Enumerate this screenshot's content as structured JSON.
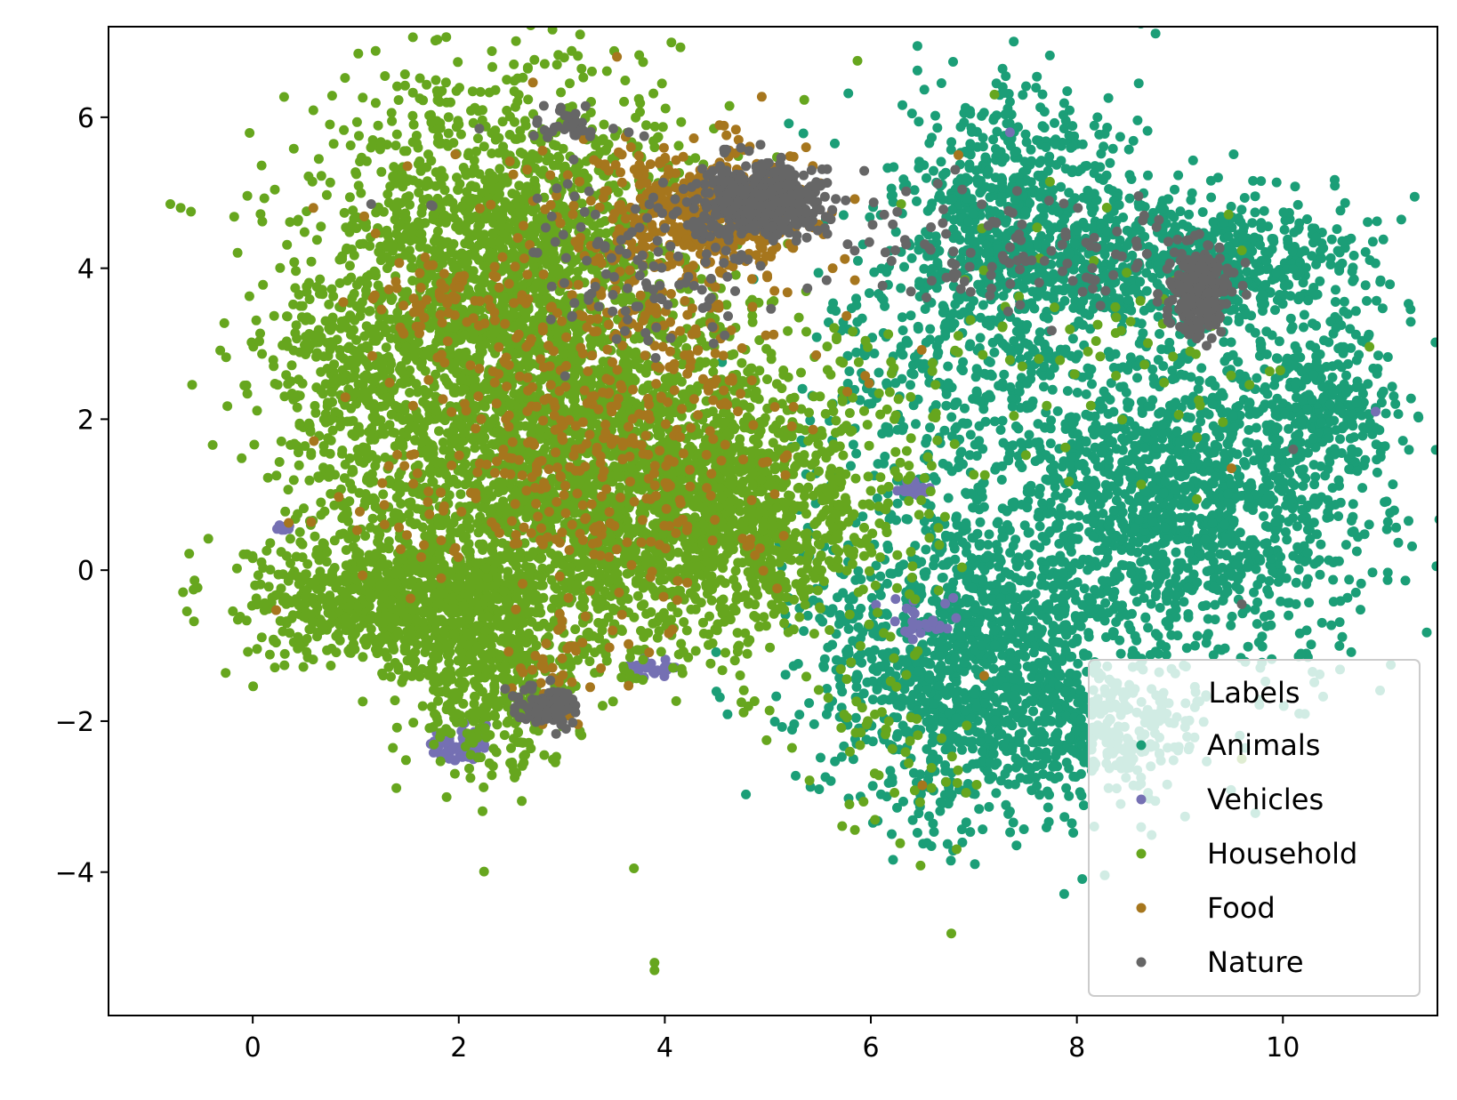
{
  "chart_data": {
    "type": "scatter",
    "title": "",
    "xlabel": "",
    "ylabel": "",
    "xlim": [
      -1.4,
      11.5
    ],
    "ylim": [
      -5.9,
      7.2
    ],
    "xticks": [
      0,
      2,
      4,
      6,
      8,
      10
    ],
    "yticks": [
      -4,
      -2,
      0,
      2,
      4,
      6
    ],
    "grid": false,
    "legend": {
      "title": "Labels",
      "placement": "lower-right"
    },
    "series": [
      {
        "name": "Animals",
        "color": "#1b9e77",
        "clusters": [
          {
            "cx": 7.4,
            "cy": 4.6,
            "sx": 0.55,
            "sy": 0.9,
            "n": 700
          },
          {
            "cx": 9.3,
            "cy": 4.1,
            "sx": 0.8,
            "sy": 0.5,
            "n": 600
          },
          {
            "cx": 9.0,
            "cy": 1.0,
            "sx": 1.0,
            "sy": 1.1,
            "n": 1500
          },
          {
            "cx": 7.0,
            "cy": -1.2,
            "sx": 0.8,
            "sy": 1.1,
            "n": 1300
          },
          {
            "cx": 6.6,
            "cy": 2.8,
            "sx": 0.7,
            "sy": 1.0,
            "n": 300
          },
          {
            "cx": 10.4,
            "cy": 2.2,
            "sx": 0.35,
            "sy": 0.5,
            "n": 200
          },
          {
            "cx": 8.1,
            "cy": -2.2,
            "sx": 0.5,
            "sy": 0.4,
            "n": 250
          }
        ],
        "points": [
          [
            10.9,
            2.15
          ],
          [
            10.95,
            1.5
          ],
          [
            6.4,
            6.05
          ],
          [
            6.8,
            3.4
          ],
          [
            8.2,
            6.0
          ],
          [
            5.9,
            -3.0
          ]
        ]
      },
      {
        "name": "Vehicles",
        "color": "#7570b3",
        "clusters": [
          {
            "cx": 2.0,
            "cy": -2.3,
            "sx": 0.15,
            "sy": 0.12,
            "n": 80
          },
          {
            "cx": 0.3,
            "cy": 0.55,
            "sx": 0.05,
            "sy": 0.03,
            "n": 15
          },
          {
            "cx": 3.9,
            "cy": -1.3,
            "sx": 0.15,
            "sy": 0.05,
            "n": 25
          },
          {
            "cx": 6.5,
            "cy": -0.6,
            "sx": 0.15,
            "sy": 0.15,
            "n": 25
          },
          {
            "cx": 6.4,
            "cy": 1.1,
            "sx": 0.1,
            "sy": 0.05,
            "n": 15
          }
        ],
        "points": [
          [
            7.35,
            5.8
          ],
          [
            10.9,
            2.1
          ]
        ]
      },
      {
        "name": "Household",
        "color": "#66a61e",
        "clusters": [
          {
            "cx": 2.4,
            "cy": 3.8,
            "sx": 0.9,
            "sy": 1.4,
            "n": 2200
          },
          {
            "cx": 3.4,
            "cy": 1.0,
            "sx": 1.2,
            "sy": 1.0,
            "n": 2400
          },
          {
            "cx": 1.3,
            "cy": -0.4,
            "sx": 0.7,
            "sy": 0.4,
            "n": 700
          },
          {
            "cx": 2.3,
            "cy": -1.3,
            "sx": 0.45,
            "sy": 0.7,
            "n": 500
          },
          {
            "cx": 4.8,
            "cy": 1.0,
            "sx": 0.7,
            "sy": 1.0,
            "n": 600
          },
          {
            "cx": 1.0,
            "cy": 2.2,
            "sx": 0.4,
            "sy": 0.9,
            "n": 300
          },
          {
            "cx": 6.2,
            "cy": -2.3,
            "sx": 0.4,
            "sy": 0.8,
            "n": 60
          },
          {
            "cx": 8.0,
            "cy": 3.0,
            "sx": 1.0,
            "sy": 1.0,
            "n": 80
          }
        ],
        "points": [
          [
            -0.8,
            4.85
          ],
          [
            -0.7,
            4.8
          ],
          [
            -0.6,
            4.75
          ],
          [
            3.7,
            -3.95
          ],
          [
            3.9,
            -5.2
          ],
          [
            3.9,
            -5.3
          ],
          [
            7.2,
            6.3
          ],
          [
            9.6,
            -2.5
          ]
        ]
      },
      {
        "name": "Food",
        "color": "#a6761d",
        "clusters": [
          {
            "cx": 4.4,
            "cy": 4.8,
            "sx": 0.5,
            "sy": 0.4,
            "n": 400
          },
          {
            "cx": 3.5,
            "cy": 2.8,
            "sx": 1.0,
            "sy": 1.3,
            "n": 450
          },
          {
            "cx": 3.0,
            "cy": -1.2,
            "sx": 0.3,
            "sy": 0.3,
            "n": 40
          },
          {
            "cx": 1.8,
            "cy": 3.6,
            "sx": 0.4,
            "sy": 0.3,
            "n": 50
          },
          {
            "cx": 3.0,
            "cy": 0.8,
            "sx": 1.0,
            "sy": 0.6,
            "n": 150
          }
        ],
        "points": [
          [
            6.85,
            5.5
          ],
          [
            7.1,
            -1.4
          ],
          [
            9.5,
            1.35
          ],
          [
            6.5,
            -2.85
          ]
        ]
      },
      {
        "name": "Nature",
        "color": "#666666",
        "clusters": [
          {
            "cx": 4.9,
            "cy": 4.9,
            "sx": 0.35,
            "sy": 0.25,
            "n": 450
          },
          {
            "cx": 9.2,
            "cy": 3.7,
            "sx": 0.15,
            "sy": 0.3,
            "n": 250
          },
          {
            "cx": 2.9,
            "cy": -1.8,
            "sx": 0.15,
            "sy": 0.12,
            "n": 120
          },
          {
            "cx": 3.8,
            "cy": 4.2,
            "sx": 0.7,
            "sy": 0.6,
            "n": 120
          },
          {
            "cx": 7.2,
            "cy": 4.2,
            "sx": 1.0,
            "sy": 0.4,
            "n": 120
          },
          {
            "cx": 3.0,
            "cy": 5.9,
            "sx": 0.15,
            "sy": 0.1,
            "n": 30
          }
        ],
        "points": [
          [
            3.5,
            5.85
          ],
          [
            3.65,
            5.8
          ],
          [
            3.8,
            5.75
          ],
          [
            1.15,
            4.85
          ],
          [
            9.6,
            -0.45
          ],
          [
            10.1,
            1.6
          ],
          [
            2.2,
            5.85
          ]
        ]
      }
    ]
  }
}
